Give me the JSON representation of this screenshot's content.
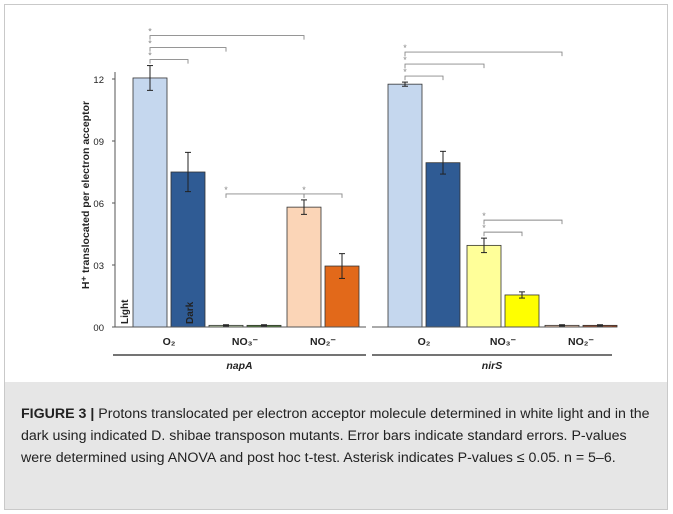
{
  "chart_data": {
    "type": "bar",
    "ylabel": "H⁺ translocated per electron acceptor",
    "ylim": [
      0,
      13
    ],
    "yticks": [
      {
        "value": 0,
        "label": "00"
      },
      {
        "value": 3,
        "label": "03"
      },
      {
        "value": 6,
        "label": "06"
      },
      {
        "value": 9,
        "label": "09"
      },
      {
        "value": 12,
        "label": "12"
      }
    ],
    "series": [
      {
        "name": "Light"
      },
      {
        "name": "Dark"
      }
    ],
    "groups": [
      {
        "mutant": "napA",
        "conditions": [
          {
            "label": "O₂",
            "light": 12.05,
            "light_err": 0.6,
            "dark": 7.5,
            "dark_err": 0.95,
            "colors": [
              "#c5d7ee",
              "#2f5b94"
            ]
          },
          {
            "label": "NO₃⁻",
            "light": 0.08,
            "light_err": 0.03,
            "dark": 0.08,
            "dark_err": 0.03,
            "colors": [
              "#c6e0b4",
              "#4e8a33"
            ]
          },
          {
            "label": "NO₂⁻",
            "light": 5.8,
            "light_err": 0.35,
            "dark": 2.95,
            "dark_err": 0.6,
            "colors": [
              "#fbd5b7",
              "#e2691a"
            ]
          }
        ]
      },
      {
        "mutant": "nirS",
        "conditions": [
          {
            "label": "O₂",
            "light": 11.75,
            "light_err": 0.1,
            "dark": 7.95,
            "dark_err": 0.55,
            "colors": [
              "#c5d7ee",
              "#2f5b94"
            ]
          },
          {
            "label": "NO₃⁻",
            "light": 3.95,
            "light_err": 0.35,
            "dark": 1.55,
            "dark_err": 0.15,
            "colors": [
              "#ffff99",
              "#ffff00"
            ]
          },
          {
            "label": "NO₂⁻",
            "light": 0.08,
            "light_err": 0.03,
            "dark": 0.08,
            "dark_err": 0.03,
            "colors": [
              "#f4c9b0",
              "#b0502a"
            ]
          }
        ]
      }
    ],
    "significance_marker": "*",
    "significance": [
      {
        "group": 0,
        "from": [
          0,
          "light"
        ],
        "to": [
          0,
          "dark"
        ]
      },
      {
        "group": 0,
        "from": [
          0,
          "light"
        ],
        "to": [
          1,
          "light"
        ]
      },
      {
        "group": 0,
        "from": [
          0,
          "light"
        ],
        "to": [
          2,
          "light"
        ]
      },
      {
        "group": 0,
        "from": [
          1,
          "light"
        ],
        "to": [
          2,
          "light"
        ]
      },
      {
        "group": 0,
        "from": [
          2,
          "light"
        ],
        "to": [
          2,
          "dark"
        ]
      },
      {
        "group": 1,
        "from": [
          0,
          "light"
        ],
        "to": [
          0,
          "dark"
        ]
      },
      {
        "group": 1,
        "from": [
          0,
          "light"
        ],
        "to": [
          1,
          "light"
        ]
      },
      {
        "group": 1,
        "from": [
          0,
          "light"
        ],
        "to": [
          2,
          "light"
        ]
      },
      {
        "group": 1,
        "from": [
          1,
          "light"
        ],
        "to": [
          1,
          "dark"
        ]
      },
      {
        "group": 1,
        "from": [
          1,
          "light"
        ],
        "to": [
          2,
          "light"
        ]
      }
    ]
  },
  "caption": {
    "label": "FIGURE 3 |",
    "text": " Protons translocated per electron acceptor molecule determined in white light and in the dark using indicated D. shibae transposon mutants. Error bars indicate standard errors. P-values were determined using ANOVA and post hoc t-test. Asterisk indicates P-values ≤ 0.05. n = 5–6."
  }
}
